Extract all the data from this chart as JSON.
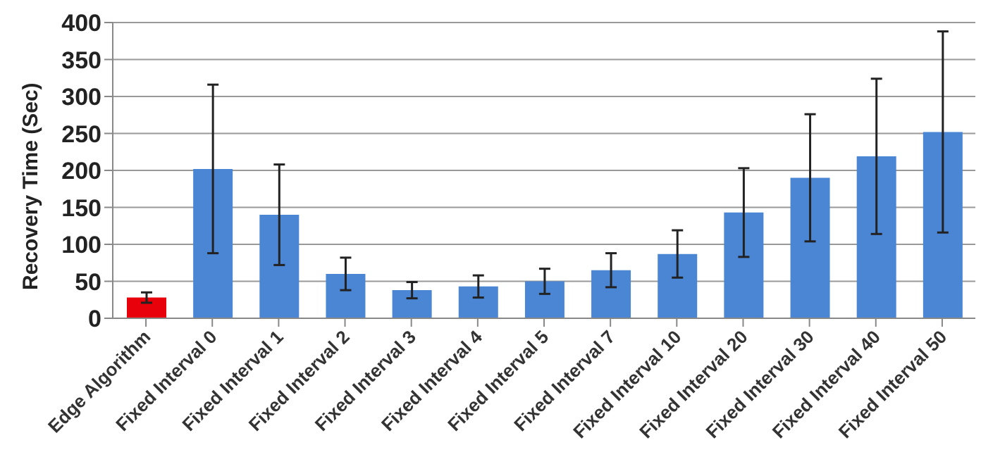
{
  "chart_data": {
    "type": "bar",
    "ylabel": "Recovery Time (Sec)",
    "categories": [
      "Edge Algorithm",
      "Fixed Interval 0",
      "Fixed Interval 1",
      "Fixed Interval 2",
      "Fixed Interval 3",
      "Fixed Interval 4",
      "Fixed Interval 5",
      "Fixed Interval 7",
      "Fixed Interval 10",
      "Fixed Interval 20",
      "Fixed Interval 30",
      "Fixed Interval 40",
      "Fixed Interval 50"
    ],
    "values": [
      28,
      202,
      140,
      60,
      38,
      43,
      50,
      65,
      87,
      143,
      190,
      219,
      252
    ],
    "errors": [
      7,
      114,
      68,
      22,
      11,
      15,
      17,
      23,
      32,
      60,
      86,
      105,
      136
    ],
    "colors": [
      "#e8000b",
      "#4a86d4",
      "#4a86d4",
      "#4a86d4",
      "#4a86d4",
      "#4a86d4",
      "#4a86d4",
      "#4a86d4",
      "#4a86d4",
      "#4a86d4",
      "#4a86d4",
      "#4a86d4",
      "#4a86d4"
    ],
    "ylim": [
      0,
      400
    ],
    "yticks": [
      0,
      50,
      100,
      150,
      200,
      250,
      300,
      350,
      400
    ],
    "grid": "y"
  }
}
